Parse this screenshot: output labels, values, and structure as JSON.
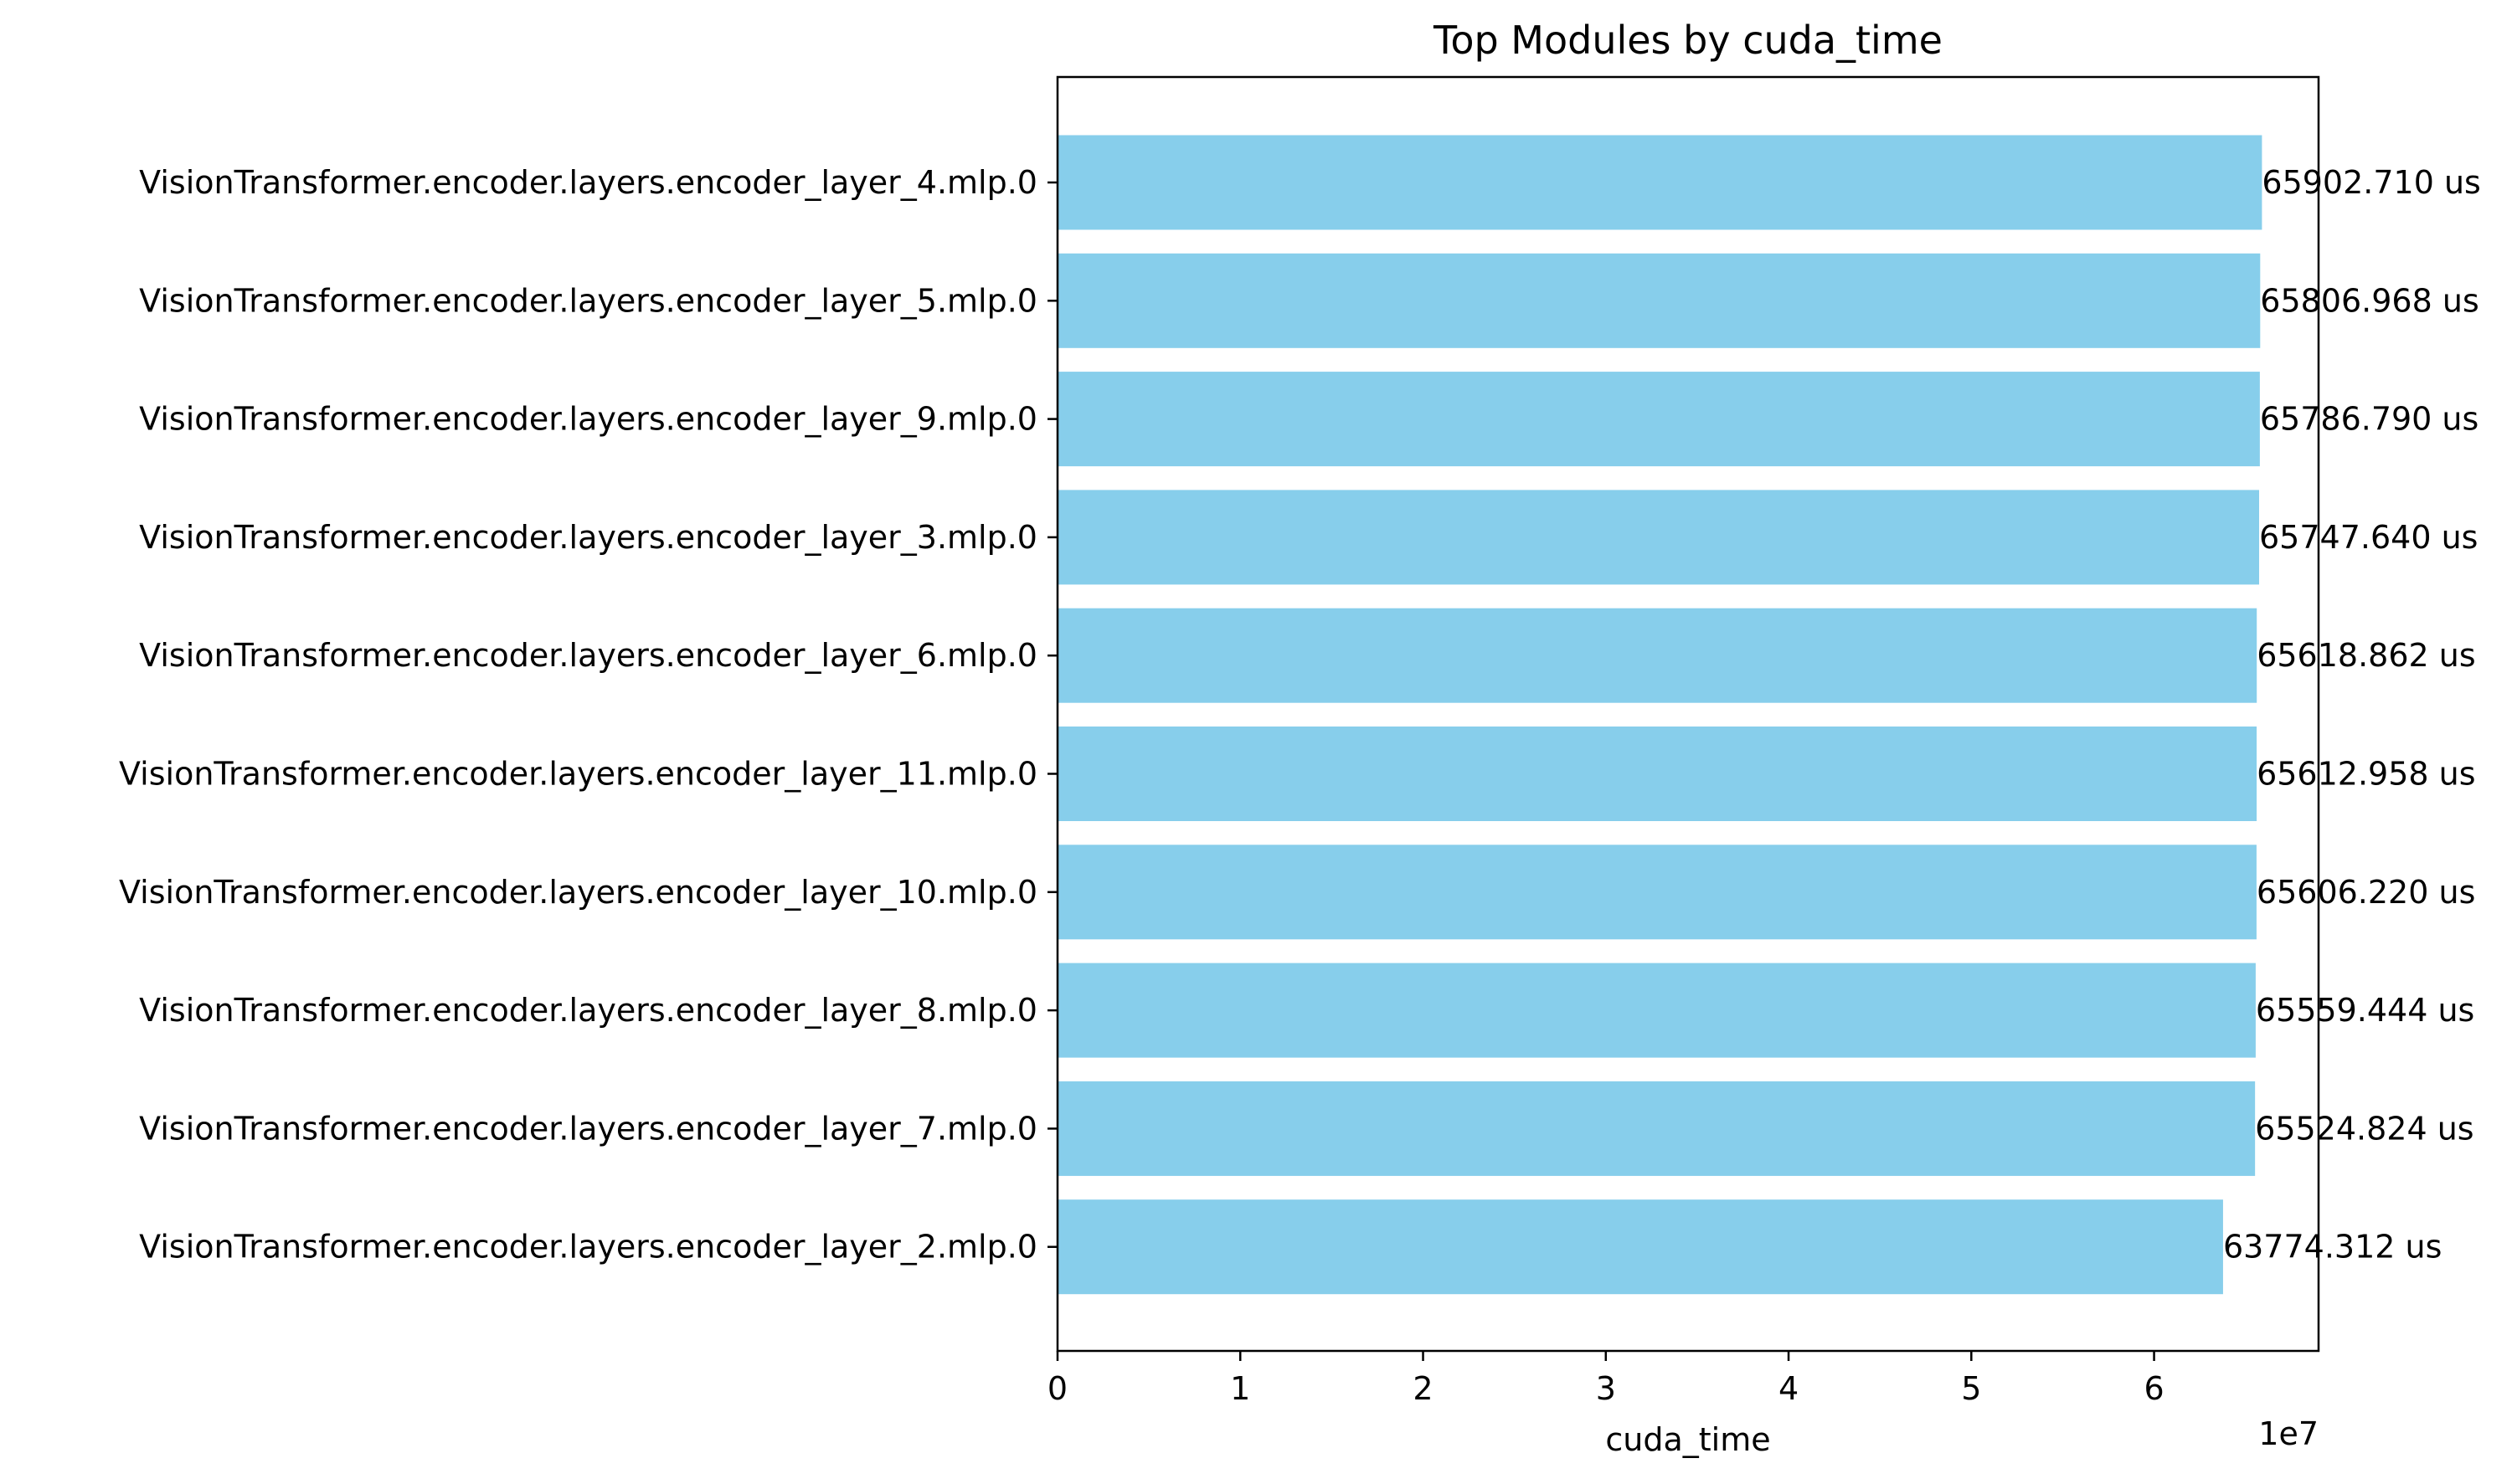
{
  "chart_data": {
    "type": "bar",
    "orientation": "horizontal",
    "title": "Top Modules by cuda_time",
    "xlabel": "cuda_time",
    "ylabel": "",
    "x_offset_label": "1e7",
    "xlim": [
      0,
      69000000
    ],
    "xticks": [
      0,
      1,
      2,
      3,
      4,
      5,
      6
    ],
    "xtick_multiplier": 10000000,
    "categories": [
      "VisionTransformer.encoder.layers.encoder_layer_4.mlp.0",
      "VisionTransformer.encoder.layers.encoder_layer_5.mlp.0",
      "VisionTransformer.encoder.layers.encoder_layer_9.mlp.0",
      "VisionTransformer.encoder.layers.encoder_layer_3.mlp.0",
      "VisionTransformer.encoder.layers.encoder_layer_6.mlp.0",
      "VisionTransformer.encoder.layers.encoder_layer_11.mlp.0",
      "VisionTransformer.encoder.layers.encoder_layer_10.mlp.0",
      "VisionTransformer.encoder.layers.encoder_layer_8.mlp.0",
      "VisionTransformer.encoder.layers.encoder_layer_7.mlp.0",
      "VisionTransformer.encoder.layers.encoder_layer_2.mlp.0"
    ],
    "values": [
      65902710,
      65806968,
      65786790,
      65747640,
      65618862,
      65612958,
      65606220,
      65559444,
      65524824,
      63774312
    ],
    "value_labels": [
      "65902.710 us",
      "65806.968 us",
      "65786.790 us",
      "65747.640 us",
      "65618.862 us",
      "65612.958 us",
      "65606.220 us",
      "65559.444 us",
      "65524.824 us",
      "63774.312 us"
    ],
    "bar_color": "#87ceeb",
    "grid": false,
    "legend": "none"
  }
}
